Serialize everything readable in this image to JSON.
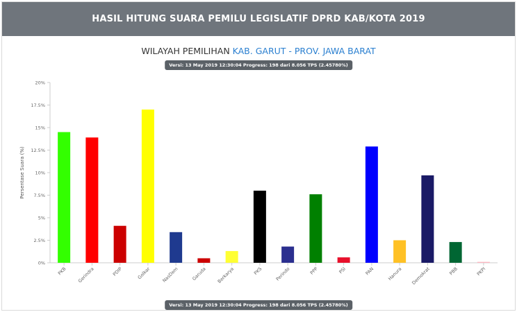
{
  "header": {
    "title": "HASIL HITUNG SUARA PEMILU LEGISLATIF DPRD KAB/KOTA 2019"
  },
  "subtitle": {
    "prefix": "WILAYAH PEMILIHAN",
    "region": "KAB. GARUT - PROV. JAWA BARAT"
  },
  "version_top": "Versi: 13 May 2019 12:30:04 Progress: 198 dari 8.056 TPS (2.45780%)",
  "version_bottom": "Versi: 13 May 2019 12:30:04 Progress: 198 dari 8.056 TPS (2.45780%)",
  "chart_data": {
    "type": "bar",
    "title": "",
    "xlabel": "",
    "ylabel": "Persentase Suara (%)",
    "ylim": [
      0,
      20
    ],
    "yticks": [
      "0%",
      "2.5%",
      "5%",
      "7.5%",
      "10%",
      "12.5%",
      "15%",
      "17.5%",
      "20%"
    ],
    "ytick_values": [
      0,
      2.5,
      5,
      7.5,
      10,
      12.5,
      15,
      17.5,
      20
    ],
    "grid": false,
    "categories": [
      "PKB",
      "Gerindra",
      "PDIP",
      "Golkar",
      "NasDem",
      "Garuda",
      "Berkarya",
      "PKS",
      "Perindo",
      "PPP",
      "PSI",
      "PAN",
      "Hanura",
      "Demokrat",
      "PBB",
      "PKPI"
    ],
    "values": [
      14.5,
      13.9,
      4.1,
      17.0,
      3.4,
      0.5,
      1.3,
      8.0,
      1.8,
      7.6,
      0.6,
      12.9,
      2.5,
      9.7,
      2.3,
      0.1
    ],
    "colors": [
      "#33ff00",
      "#ff0000",
      "#cc0000",
      "#ffff00",
      "#1f3a8f",
      "#cc0000",
      "#ffff33",
      "#000000",
      "#2b2f8f",
      "#008000",
      "#e8102b",
      "#0000ff",
      "#ffc125",
      "#1a1a66",
      "#006633",
      "#ffb6c1"
    ]
  }
}
